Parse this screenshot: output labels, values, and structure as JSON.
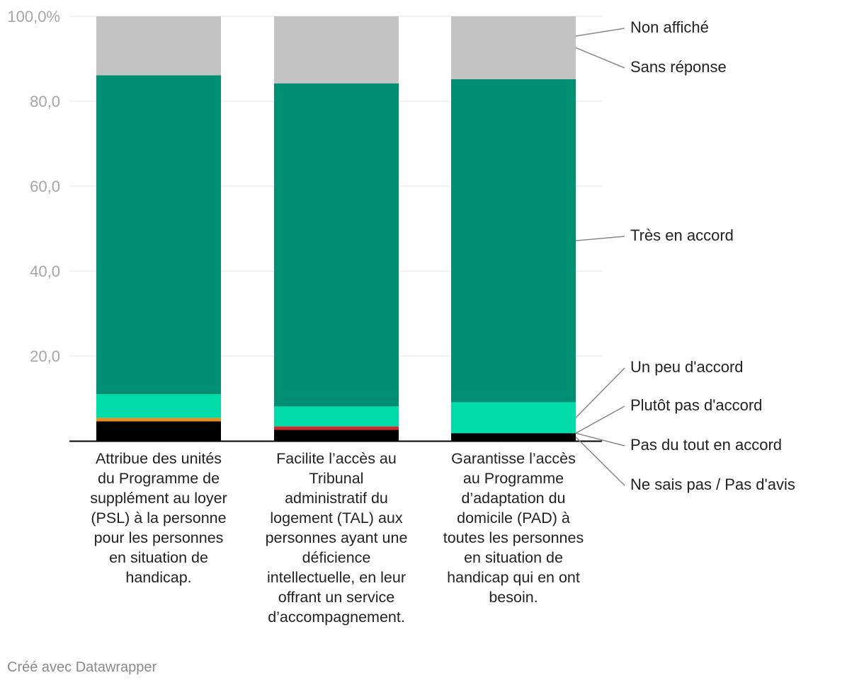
{
  "chart_data": {
    "type": "bar",
    "stacked": true,
    "categories": [
      [
        "Attribue des unités",
        "du Programme de",
        "supplément au loyer",
        "(PSL) à la personne",
        "pour les personnes",
        "en situation de",
        "handicap."
      ],
      [
        "Facilite l’accès au",
        "Tribunal",
        "administratif du",
        "logement (TAL) aux",
        "personnes ayant une",
        "déficience",
        "intellectuelle, en leur",
        "offrant un service",
        "d’accompagnement."
      ],
      [
        "Garantisse l’accès",
        "au Programme",
        "d’adaptation du",
        "domicile (PAD) à",
        "toutes les personnes",
        "en situation de",
        "handicap qui en ont",
        "besoin."
      ]
    ],
    "series": [
      {
        "name": "Ne sais pas / Pas d'avis",
        "color": "#000000",
        "values": [
          4.6,
          2.6,
          1.8
        ]
      },
      {
        "name": "Pas du tout en accord",
        "color": "#d62728",
        "values": [
          0.0,
          0.8,
          0.0
        ]
      },
      {
        "name": "Plutôt pas d'accord",
        "color": "#f08c1c",
        "values": [
          0.8,
          0.0,
          0.0
        ]
      },
      {
        "name": "Un peu d'accord",
        "color": "#00dba9",
        "values": [
          5.6,
          4.7,
          7.3
        ]
      },
      {
        "name": "Très en accord",
        "color": "#008f72",
        "values": [
          75.1,
          76.1,
          76.1
        ]
      },
      {
        "name": "Sans réponse",
        "color": "#c4c4c4",
        "values": [
          13.9,
          15.8,
          14.8
        ]
      },
      {
        "name": "Non affiché",
        "color": "#c4c4c4",
        "values": [
          0.0,
          0.0,
          0.0
        ]
      }
    ],
    "legend_order": [
      "Non affiché",
      "Sans réponse",
      "Très en accord",
      "Un peu d'accord",
      "Plutôt pas d'accord",
      "Pas du tout en accord",
      "Ne sais pas / Pas d'avis"
    ],
    "ylim": [
      0,
      100
    ],
    "yticks": [
      0,
      20,
      40,
      60,
      80,
      100
    ],
    "ytick_labels": [
      "",
      "20,0",
      "40,0",
      "60,0",
      "80,0",
      "100,0%"
    ],
    "grid": true,
    "legend_placement": "right, direct labels"
  },
  "footer": {
    "credit": "Créé avec Datawrapper"
  }
}
